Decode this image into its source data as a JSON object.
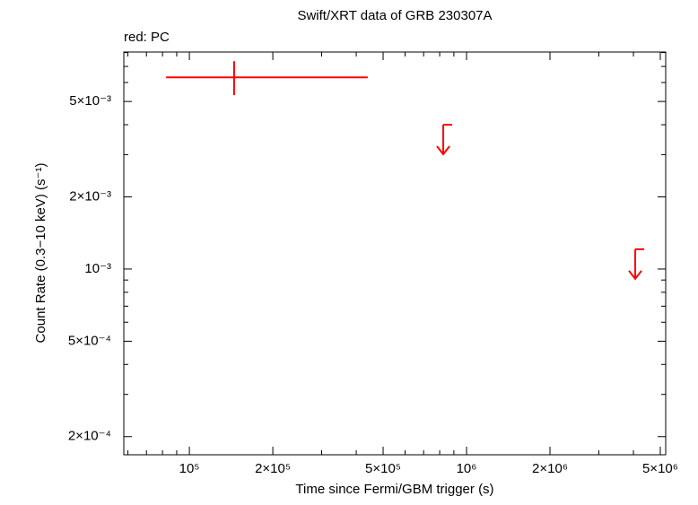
{
  "chart_data": {
    "type": "scatter",
    "title": "Swift/XRT data of GRB 230307A",
    "annotation": "red: PC",
    "x_label": "Time since Fermi/GBM trigger (s)",
    "y_label": "Count Rate (0.3−10 keV) (s⁻¹)",
    "log_x": true,
    "log_y": true,
    "xlim": [
      58000,
      5230000
    ],
    "ylim": [
      0.000168,
      0.00804
    ],
    "xticks": [
      {
        "value": 100000,
        "label": "10⁵"
      },
      {
        "value": 200000,
        "label": "2×10⁵"
      },
      {
        "value": 500000,
        "label": "5×10⁵"
      },
      {
        "value": 1000000,
        "label": "10⁶"
      },
      {
        "value": 2000000,
        "label": "2×10⁶"
      },
      {
        "value": 5000000,
        "label": "5×10⁶"
      }
    ],
    "yticks": [
      {
        "value": 0.0002,
        "label": "2×10⁻⁴"
      },
      {
        "value": 0.0005,
        "label": "5×10⁻⁴"
      },
      {
        "value": 0.001,
        "label": "10⁻³"
      },
      {
        "value": 0.002,
        "label": "2×10⁻³"
      },
      {
        "value": 0.005,
        "label": "5×10⁻³"
      }
    ],
    "xminorticks": [
      60000,
      70000,
      80000,
      90000,
      300000,
      400000,
      600000,
      700000,
      800000,
      900000,
      3000000,
      4000000
    ],
    "yminorticks": [
      0.0003,
      0.0004,
      0.0006,
      0.0007,
      0.0008,
      0.0009,
      0.003,
      0.004,
      0.006,
      0.007,
      0.008
    ],
    "series": [
      {
        "color": "#ff0000",
        "x": [
          145000
        ],
        "x_low": [
          82400
        ],
        "x_high": [
          440000
        ],
        "values": [
          0.0063
        ],
        "y_low": [
          0.00531
        ],
        "y_high": [
          0.00736
        ]
      }
    ],
    "upper_limits": {
      "color": "#ff0000",
      "x": [
        824000,
        4060000
      ],
      "values": [
        0.004,
        0.00121
      ]
    }
  }
}
